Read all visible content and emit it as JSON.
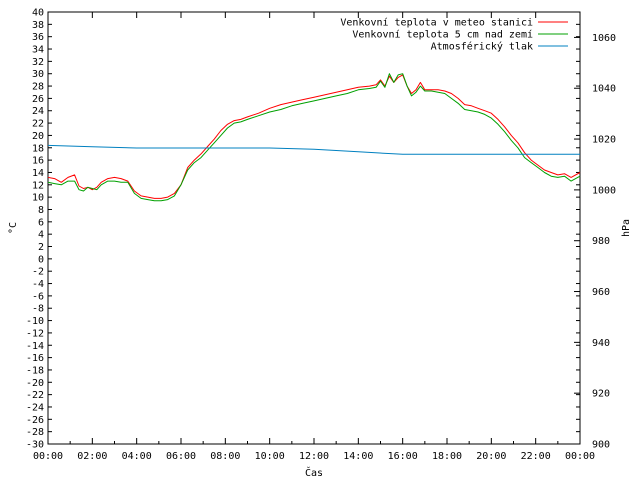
{
  "chart_data": {
    "type": "line",
    "xlabel": "Čas",
    "ylabel_left": "°C",
    "ylabel_right": "hPa",
    "x_ticks": [
      "00:00",
      "02:00",
      "04:00",
      "06:00",
      "08:00",
      "10:00",
      "12:00",
      "14:00",
      "16:00",
      "18:00",
      "20:00",
      "22:00",
      "00:00"
    ],
    "x_range_hours": [
      0,
      24
    ],
    "ylim_left": [
      -30,
      40
    ],
    "ylim_right": [
      900,
      1070
    ],
    "y_ticks_left": [
      40,
      38,
      36,
      34,
      32,
      30,
      28,
      26,
      24,
      22,
      20,
      18,
      16,
      14,
      12,
      10,
      8,
      6,
      4,
      2,
      0,
      -2,
      -4,
      -6,
      -8,
      -10,
      -12,
      -14,
      -16,
      -18,
      -20,
      -22,
      -24,
      -26,
      -28,
      -30
    ],
    "y_ticks_right": [
      1060,
      1040,
      1020,
      1000,
      980,
      960,
      940,
      920,
      900
    ],
    "grid": false,
    "legend_position": "top-right",
    "series": [
      {
        "name": "Venkovní teplota v meteo stanici",
        "color": "#ff0000",
        "axis": "left",
        "x": [
          0,
          0.3,
          0.6,
          0.9,
          1.2,
          1.4,
          1.6,
          1.8,
          2.0,
          2.2,
          2.4,
          2.7,
          3.0,
          3.3,
          3.6,
          3.9,
          4.2,
          4.5,
          4.8,
          5.1,
          5.4,
          5.7,
          6.0,
          6.3,
          6.6,
          6.9,
          7.2,
          7.5,
          7.8,
          8.1,
          8.4,
          8.7,
          9.0,
          9.5,
          10.0,
          10.5,
          11.0,
          11.5,
          12.0,
          12.5,
          13.0,
          13.5,
          14.0,
          14.5,
          14.8,
          15.0,
          15.2,
          15.4,
          15.6,
          15.8,
          16.0,
          16.2,
          16.4,
          16.6,
          16.8,
          17.0,
          17.3,
          17.6,
          17.9,
          18.2,
          18.5,
          18.8,
          19.1,
          19.4,
          19.7,
          20.0,
          20.3,
          20.6,
          20.9,
          21.2,
          21.5,
          21.8,
          22.1,
          22.4,
          22.7,
          23.0,
          23.3,
          23.6,
          24.0
        ],
        "values": [
          13.2,
          13.0,
          12.4,
          13.2,
          13.6,
          11.8,
          11.4,
          11.6,
          11.2,
          11.6,
          12.4,
          13.0,
          13.2,
          13.0,
          12.6,
          11.0,
          10.2,
          10.0,
          9.8,
          9.8,
          10.0,
          10.6,
          12.0,
          14.8,
          16.0,
          17.0,
          18.2,
          19.4,
          20.8,
          21.8,
          22.4,
          22.6,
          23.0,
          23.6,
          24.4,
          25.0,
          25.4,
          25.8,
          26.2,
          26.6,
          27.0,
          27.4,
          27.8,
          28.0,
          28.2,
          29.0,
          28.0,
          29.6,
          28.6,
          29.4,
          29.8,
          28.0,
          26.8,
          27.4,
          28.6,
          27.4,
          27.4,
          27.4,
          27.2,
          26.8,
          26.0,
          25.0,
          24.8,
          24.4,
          24.0,
          23.6,
          22.6,
          21.4,
          20.0,
          18.8,
          17.2,
          16.0,
          15.2,
          14.4,
          14.0,
          13.6,
          13.8,
          13.2,
          14.0
        ]
      },
      {
        "name": "Venkovní teplota 5 cm nad zemí",
        "color": "#00a000",
        "axis": "left",
        "x": [
          0,
          0.3,
          0.6,
          0.9,
          1.2,
          1.4,
          1.6,
          1.8,
          2.0,
          2.2,
          2.4,
          2.7,
          3.0,
          3.3,
          3.6,
          3.9,
          4.2,
          4.5,
          4.8,
          5.1,
          5.4,
          5.7,
          6.0,
          6.3,
          6.6,
          6.9,
          7.2,
          7.5,
          7.8,
          8.1,
          8.4,
          8.7,
          9.0,
          9.5,
          10.0,
          10.5,
          11.0,
          11.5,
          12.0,
          12.5,
          13.0,
          13.5,
          14.0,
          14.5,
          14.8,
          15.0,
          15.2,
          15.4,
          15.6,
          15.8,
          16.0,
          16.2,
          16.4,
          16.6,
          16.8,
          17.0,
          17.3,
          17.6,
          17.9,
          18.2,
          18.5,
          18.8,
          19.1,
          19.4,
          19.7,
          20.0,
          20.3,
          20.6,
          20.9,
          21.2,
          21.5,
          21.8,
          22.1,
          22.4,
          22.7,
          23.0,
          23.3,
          23.6,
          24.0
        ],
        "values": [
          12.4,
          12.2,
          12.0,
          12.6,
          12.6,
          11.2,
          11.0,
          11.6,
          11.4,
          11.2,
          12.0,
          12.6,
          12.6,
          12.4,
          12.4,
          10.6,
          9.8,
          9.6,
          9.4,
          9.4,
          9.6,
          10.2,
          12.0,
          14.4,
          15.6,
          16.4,
          17.6,
          18.8,
          20.0,
          21.2,
          22.0,
          22.2,
          22.6,
          23.2,
          23.8,
          24.2,
          24.8,
          25.2,
          25.6,
          26.0,
          26.4,
          26.8,
          27.4,
          27.6,
          27.8,
          28.8,
          27.8,
          30.0,
          28.6,
          29.8,
          30.0,
          28.0,
          26.4,
          27.0,
          28.0,
          27.2,
          27.2,
          27.0,
          26.8,
          26.0,
          25.2,
          24.2,
          24.0,
          23.8,
          23.4,
          22.8,
          21.8,
          20.6,
          19.2,
          18.0,
          16.4,
          15.6,
          14.8,
          14.0,
          13.4,
          13.2,
          13.4,
          12.6,
          13.4
        ]
      },
      {
        "name": "Atmosférický tlak",
        "color": "#0080c0",
        "axis": "right",
        "x": [
          0,
          2,
          4,
          6,
          8,
          10,
          12,
          14,
          16,
          18,
          20,
          22,
          24
        ],
        "values": [
          1017.5,
          1017.0,
          1016.5,
          1016.5,
          1016.5,
          1016.5,
          1016.0,
          1015.0,
          1014.0,
          1014.0,
          1014.0,
          1014.0,
          1014.0
        ]
      }
    ]
  }
}
